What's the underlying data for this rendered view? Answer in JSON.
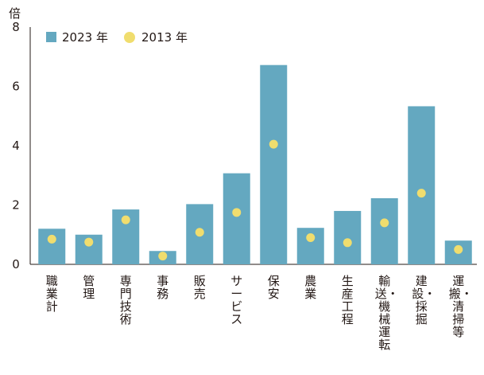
{
  "chart_data": {
    "type": "bar",
    "title": "",
    "xlabel": "",
    "ylabel": "倍",
    "ylim": [
      0,
      8
    ],
    "yticks": [
      0,
      2,
      4,
      6,
      8
    ],
    "grid": false,
    "legend_position": "top-left",
    "categories": [
      "職業計",
      "管理",
      "専門技術",
      "事務",
      "販売",
      "サービス",
      "保安",
      "農業",
      "生産工程",
      "輸送・機械運転",
      "建設・採掘",
      "運搬・清掃等"
    ],
    "series": [
      {
        "name": "2023 年",
        "kind": "bar",
        "color": "#64a8c0",
        "values": [
          1.2,
          1.0,
          1.85,
          0.45,
          2.03,
          3.07,
          6.72,
          1.23,
          1.8,
          2.23,
          5.33,
          0.8
        ]
      },
      {
        "name": "2013 年",
        "kind": "point",
        "color": "#f0dd6e",
        "values": [
          0.85,
          0.75,
          1.5,
          0.28,
          1.08,
          1.75,
          4.05,
          0.9,
          0.73,
          1.4,
          2.4,
          0.5
        ]
      }
    ]
  }
}
